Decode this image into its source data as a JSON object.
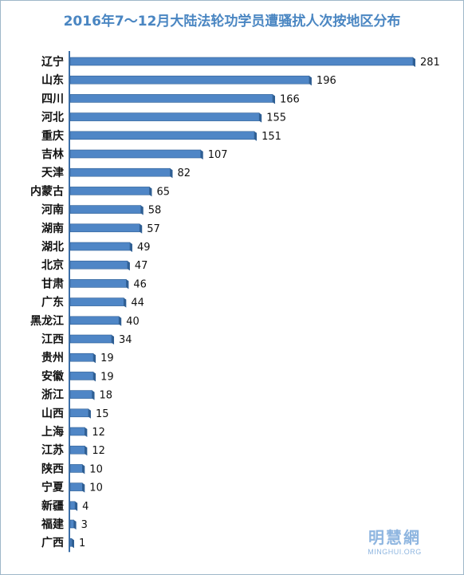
{
  "chart_data": {
    "type": "bar",
    "orientation": "horizontal",
    "title": "2016年7～12月大陆法轮功学员遭骚扰人次按地区分布",
    "categories": [
      "辽宁",
      "山东",
      "四川",
      "河北",
      "重庆",
      "吉林",
      "天津",
      "内蒙古",
      "河南",
      "湖南",
      "湖北",
      "北京",
      "甘肃",
      "广东",
      "黑龙江",
      "江西",
      "贵州",
      "安徽",
      "浙江",
      "山西",
      "上海",
      "江苏",
      "陕西",
      "宁夏",
      "新疆",
      "福建",
      "广西"
    ],
    "values": [
      281,
      196,
      166,
      155,
      151,
      107,
      82,
      65,
      58,
      57,
      49,
      47,
      46,
      44,
      40,
      34,
      19,
      19,
      18,
      15,
      12,
      12,
      10,
      10,
      4,
      3,
      1
    ],
    "xlim": [
      0,
      281
    ],
    "grid": false,
    "legend": "none",
    "bar_color": "#4f86c6",
    "title_color": "#4a86c2"
  },
  "watermark": {
    "chinese": "明慧網",
    "english": "MINGHUI.ORG"
  }
}
